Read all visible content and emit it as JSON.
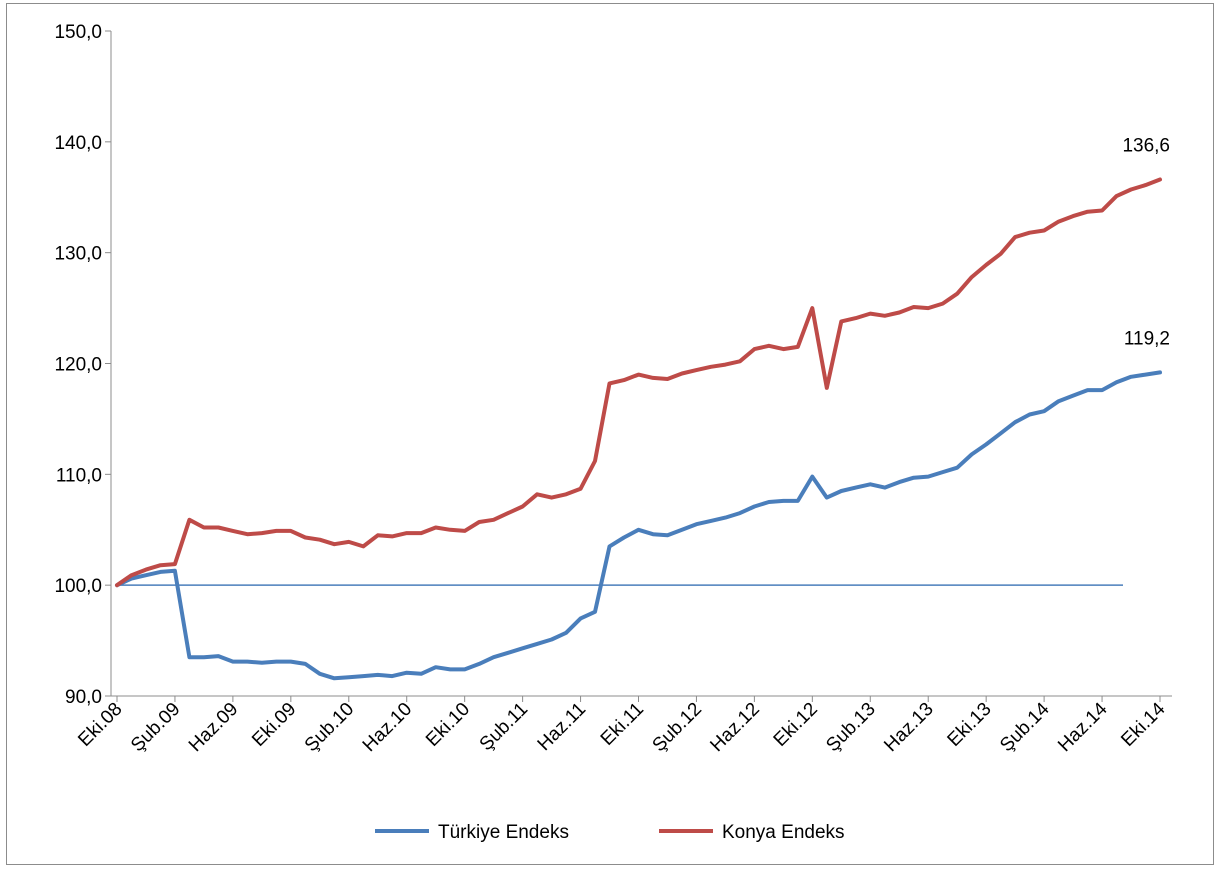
{
  "chart_data": {
    "type": "line",
    "title": "",
    "xlabel": "",
    "ylabel": "",
    "ylim": [
      90,
      150
    ],
    "yticks": [
      "90,0",
      "100,0",
      "110,0",
      "120,0",
      "130,0",
      "140,0",
      "150,0"
    ],
    "ytick_values": [
      90,
      100,
      110,
      120,
      130,
      140,
      150
    ],
    "x_tick_labels": [
      "Eki.08",
      "Şub.09",
      "Haz.09",
      "Eki.09",
      "Şub.10",
      "Haz.10",
      "Eki.10",
      "Şub.11",
      "Haz.11",
      "Eki.11",
      "Şub.12",
      "Haz.12",
      "Eki.12",
      "Şub.13",
      "Haz.13",
      "Eki.13",
      "Şub.14",
      "Haz.14",
      "Eki.14"
    ],
    "x_range_months": 72,
    "reference_line": 100,
    "legend_position": "bottom",
    "series": [
      {
        "name": "Türkiye Endeks",
        "color": "#4a7ebb",
        "end_label": "119,2",
        "values": [
          100.0,
          100.6,
          100.9,
          101.2,
          101.3,
          93.5,
          93.5,
          93.6,
          93.1,
          93.1,
          93.0,
          93.1,
          93.1,
          92.9,
          92.0,
          91.6,
          91.7,
          91.8,
          91.9,
          91.8,
          92.1,
          92.0,
          92.6,
          92.4,
          92.4,
          92.9,
          93.5,
          93.9,
          94.3,
          94.7,
          95.1,
          95.7,
          97.0,
          97.6,
          103.5,
          104.3,
          105.0,
          104.6,
          104.5,
          105.0,
          105.5,
          105.8,
          106.1,
          106.5,
          107.1,
          107.5,
          107.6,
          107.6,
          109.8,
          107.9,
          108.5,
          108.8,
          109.1,
          108.8,
          109.3,
          109.7,
          109.8,
          110.2,
          110.6,
          111.8,
          112.7,
          113.7,
          114.7,
          115.4,
          115.7,
          116.6,
          117.1,
          117.6,
          117.6,
          118.3,
          118.8,
          119.0,
          119.2
        ]
      },
      {
        "name": "Konya Endeks",
        "color": "#be4b48",
        "end_label": "136,6",
        "values": [
          100.0,
          100.9,
          101.4,
          101.8,
          101.9,
          105.9,
          105.2,
          105.2,
          104.9,
          104.6,
          104.7,
          104.9,
          104.9,
          104.3,
          104.1,
          103.7,
          103.9,
          103.5,
          104.5,
          104.4,
          104.7,
          104.7,
          105.2,
          105.0,
          104.9,
          105.7,
          105.9,
          106.5,
          107.1,
          108.2,
          107.9,
          108.2,
          108.7,
          111.2,
          118.2,
          118.5,
          119.0,
          118.7,
          118.6,
          119.1,
          119.4,
          119.7,
          119.9,
          120.2,
          121.3,
          121.6,
          121.3,
          121.5,
          125.0,
          117.8,
          123.8,
          124.1,
          124.5,
          124.3,
          124.6,
          125.1,
          125.0,
          125.4,
          126.3,
          127.8,
          128.9,
          129.9,
          131.4,
          131.8,
          132.0,
          132.8,
          133.3,
          133.7,
          133.8,
          135.1,
          135.7,
          136.1,
          136.6
        ]
      }
    ]
  }
}
